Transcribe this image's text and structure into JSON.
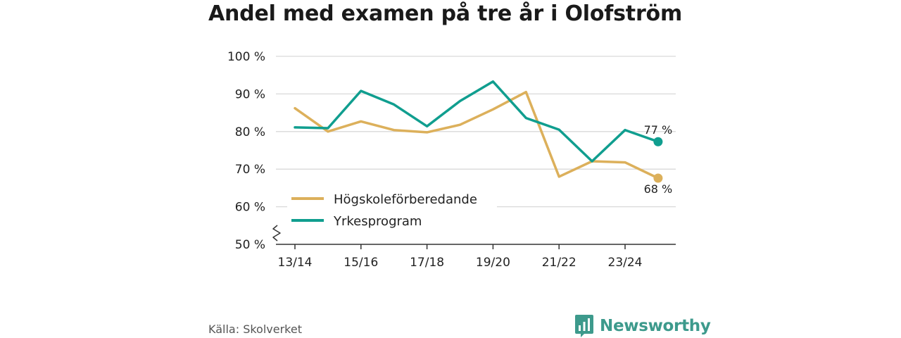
{
  "title": "Andel med examen på tre år i Olofström",
  "source": "Källa: Skolverket",
  "brand": "Newsworthy",
  "colors": {
    "hogskole": "#dcb05b",
    "yrkes": "#109e8f",
    "grid": "#d9d9d9",
    "axis": "#333333",
    "brand": "#3d9a8c"
  },
  "chart_data": {
    "type": "line",
    "title": "Andel med examen på tre år i Olofström",
    "x": [
      "13/14",
      "14/15",
      "15/16",
      "16/17",
      "17/18",
      "18/19",
      "19/20",
      "20/21",
      "21/22",
      "22/23",
      "23/24",
      "24/25"
    ],
    "x_tick_labels": [
      "13/14",
      "15/16",
      "17/18",
      "19/20",
      "21/22",
      "23/24"
    ],
    "y_tick_labels": [
      "100 %",
      "90 %",
      "80 %",
      "70 %",
      "60 %",
      "50 %"
    ],
    "ylim": [
      50,
      100
    ],
    "y_ticks": [
      50,
      60,
      70,
      80,
      90,
      100
    ],
    "grid": true,
    "axis_break": true,
    "legend_position": "lower-left",
    "series": [
      {
        "name": "Högskoleförberedande",
        "color": "#dcb05b",
        "values": [
          86.2,
          80.0,
          82.7,
          80.4,
          79.8,
          81.8,
          85.9,
          90.5,
          68.0,
          72.1,
          71.8,
          67.6
        ],
        "end_label": "68 %"
      },
      {
        "name": "Yrkesprogram",
        "color": "#109e8f",
        "values": [
          81.1,
          80.9,
          90.8,
          87.2,
          81.4,
          88.1,
          93.3,
          83.6,
          80.5,
          72.1,
          80.4,
          77.3
        ],
        "end_label": "77 %"
      }
    ]
  }
}
